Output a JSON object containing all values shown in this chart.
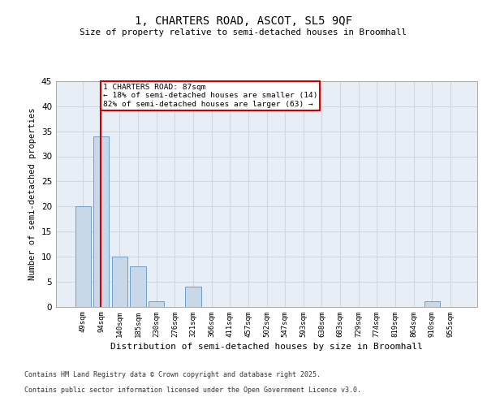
{
  "title_line1": "1, CHARTERS ROAD, ASCOT, SL5 9QF",
  "title_line2": "Size of property relative to semi-detached houses in Broomhall",
  "xlabel": "Distribution of semi-detached houses by size in Broomhall",
  "ylabel": "Number of semi-detached properties",
  "categories": [
    "49sqm",
    "94sqm",
    "140sqm",
    "185sqm",
    "230sqm",
    "276sqm",
    "321sqm",
    "366sqm",
    "411sqm",
    "457sqm",
    "502sqm",
    "547sqm",
    "593sqm",
    "638sqm",
    "683sqm",
    "729sqm",
    "774sqm",
    "819sqm",
    "864sqm",
    "910sqm",
    "955sqm"
  ],
  "values": [
    20,
    34,
    10,
    8,
    1,
    0,
    4,
    0,
    0,
    0,
    0,
    0,
    0,
    0,
    0,
    0,
    0,
    0,
    0,
    1,
    0
  ],
  "bar_color": "#c8d8e8",
  "bar_edgecolor": "#6ca0c8",
  "grid_color": "#d0d8e0",
  "background_color": "#e8eef5",
  "property_line_x": 0.97,
  "property_label": "1 CHARTERS ROAD: 87sqm",
  "smaller_pct": "18% of semi-detached houses are smaller (14)",
  "larger_pct": "82% of semi-detached houses are larger (63)",
  "annotation_box_edgecolor": "#cc0000",
  "property_line_color": "#cc0000",
  "ylim": [
    0,
    45
  ],
  "yticks": [
    0,
    5,
    10,
    15,
    20,
    25,
    30,
    35,
    40,
    45
  ],
  "footer_line1": "Contains HM Land Registry data © Crown copyright and database right 2025.",
  "footer_line2": "Contains public sector information licensed under the Open Government Licence v3.0."
}
